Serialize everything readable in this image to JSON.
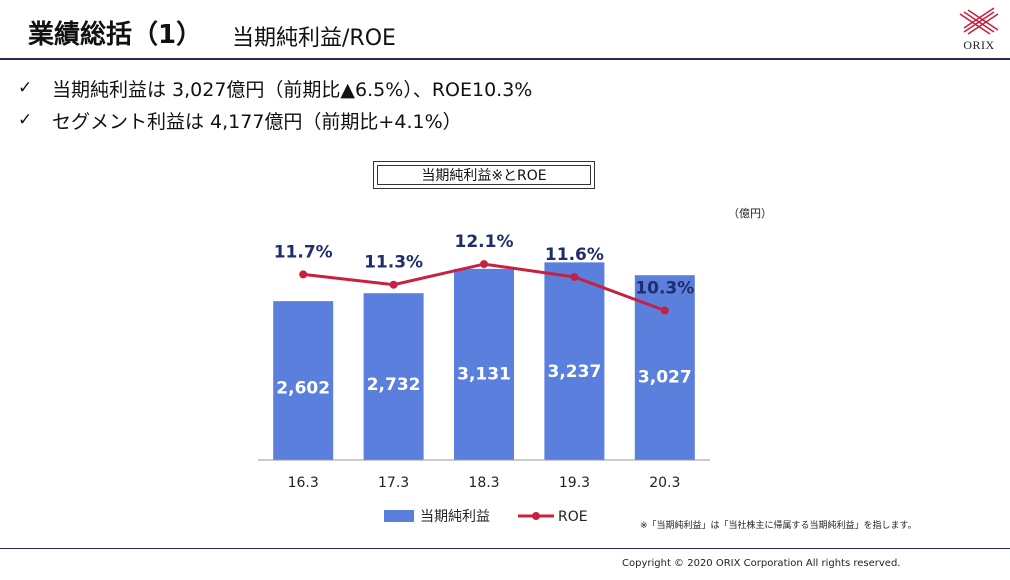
{
  "header": {
    "title_main": "業績総括（1）",
    "title_sub": "当期純利益/ROE",
    "logo_text": "ORIX"
  },
  "bullets": [
    {
      "check": "✓",
      "text": "当期純利益は 3,027億円（前期比▲6.5%）、ROE10.3%"
    },
    {
      "check": "✓",
      "text": "セグメント利益は 4,177億円（前期比+4.1%）"
    }
  ],
  "colors": {
    "bar": "#5b7fdc",
    "line": "#c8203f",
    "roe_text": "#1f2d6b",
    "rule": "#222b5a"
  },
  "chart_data": {
    "type": "bar",
    "title": "当期純利益※とROE",
    "unit": "（億円）",
    "categories": [
      "16.3",
      "17.3",
      "18.3",
      "19.3",
      "20.3"
    ],
    "series": [
      {
        "name": "当期純利益",
        "type": "bar",
        "values": [
          2602,
          2732,
          3131,
          3237,
          3027
        ],
        "labels": [
          "2,602",
          "2,732",
          "3,131",
          "3,237",
          "3,027"
        ]
      },
      {
        "name": "ROE",
        "type": "line",
        "axis": "secondary",
        "values": [
          11.7,
          11.3,
          12.1,
          11.6,
          10.3
        ],
        "labels": [
          "11.7%",
          "11.3%",
          "12.1%",
          "11.6%",
          "10.3%"
        ]
      }
    ],
    "ylim": [
      0,
      3800
    ],
    "y2lim": [
      4.5,
      13.5
    ],
    "legend_position": "bottom",
    "grid": false
  },
  "footnote": "※「当期純利益」は「当社株主に帰属する当期純利益」を指します。",
  "footer": {
    "copyright": "Copyright © 2020 ORIX Corporation All rights reserved."
  }
}
